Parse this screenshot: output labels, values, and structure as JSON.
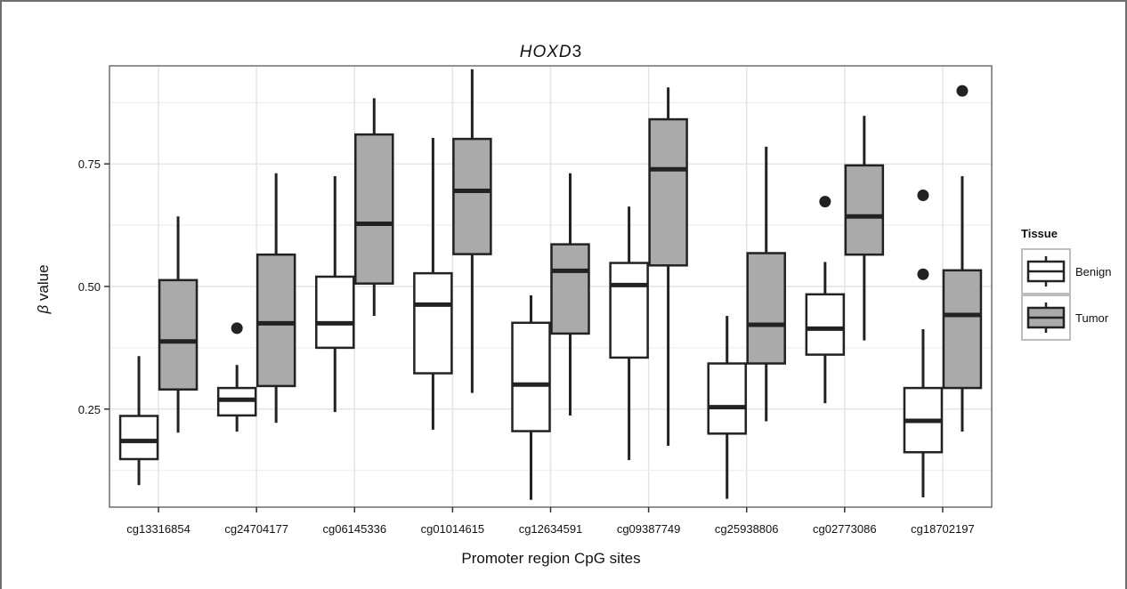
{
  "chart_data": {
    "type": "boxplot",
    "title_prefix": "HOXD",
    "title_suffix": "3",
    "xlabel": "Promoter region CpG sites",
    "ylabel_symbol": "β",
    "ylabel_text": " value",
    "ylim": [
      0.05,
      0.95
    ],
    "yticks": [
      0.25,
      0.5,
      0.75
    ],
    "ytick_labels": [
      "0.25",
      "0.50",
      "0.75"
    ],
    "grid": true,
    "legend": {
      "title": "Tissue",
      "position": "right",
      "entries": [
        {
          "label": "Benign",
          "fill": "#ffffff"
        },
        {
          "label": "Tumor",
          "fill": "#aaaaaa"
        }
      ]
    },
    "colors": {
      "benign": "#ffffff",
      "tumor": "#aaaaaa",
      "panel_border": "#6e6e6e",
      "grid": "#e4e4e4",
      "stroke": "#222222"
    },
    "categories": [
      "cg13316854",
      "cg24704177",
      "cg06145336",
      "cg01014615",
      "cg12634591",
      "cg09387749",
      "cg25938806",
      "cg02773086",
      "cg18702197"
    ],
    "series": [
      {
        "name": "Benign",
        "boxes": [
          {
            "lower": 0.095,
            "q1": 0.148,
            "median": 0.185,
            "q3": 0.236,
            "upper": 0.358,
            "outliers": []
          },
          {
            "lower": 0.204,
            "q1": 0.237,
            "median": 0.269,
            "q3": 0.293,
            "upper": 0.34,
            "outliers": [
              0.415
            ]
          },
          {
            "lower": 0.244,
            "q1": 0.375,
            "median": 0.425,
            "q3": 0.52,
            "upper": 0.725,
            "outliers": []
          },
          {
            "lower": 0.208,
            "q1": 0.323,
            "median": 0.463,
            "q3": 0.527,
            "upper": 0.803,
            "outliers": []
          },
          {
            "lower": 0.065,
            "q1": 0.205,
            "median": 0.3,
            "q3": 0.426,
            "upper": 0.482,
            "outliers": []
          },
          {
            "lower": 0.146,
            "q1": 0.355,
            "median": 0.503,
            "q3": 0.548,
            "upper": 0.663,
            "outliers": []
          },
          {
            "lower": 0.067,
            "q1": 0.2,
            "median": 0.254,
            "q3": 0.343,
            "upper": 0.44,
            "outliers": []
          },
          {
            "lower": 0.262,
            "q1": 0.361,
            "median": 0.414,
            "q3": 0.484,
            "upper": 0.55,
            "outliers": [
              0.673
            ]
          },
          {
            "lower": 0.07,
            "q1": 0.162,
            "median": 0.226,
            "q3": 0.293,
            "upper": 0.413,
            "outliers": [
              0.525,
              0.686
            ]
          }
        ]
      },
      {
        "name": "Tumor",
        "boxes": [
          {
            "lower": 0.202,
            "q1": 0.29,
            "median": 0.388,
            "q3": 0.513,
            "upper": 0.643,
            "outliers": []
          },
          {
            "lower": 0.222,
            "q1": 0.297,
            "median": 0.425,
            "q3": 0.565,
            "upper": 0.731,
            "outliers": []
          },
          {
            "lower": 0.44,
            "q1": 0.506,
            "median": 0.628,
            "q3": 0.81,
            "upper": 0.884,
            "outliers": []
          },
          {
            "lower": 0.283,
            "q1": 0.566,
            "median": 0.695,
            "q3": 0.801,
            "upper": 0.943,
            "outliers": []
          },
          {
            "lower": 0.237,
            "q1": 0.404,
            "median": 0.532,
            "q3": 0.586,
            "upper": 0.731,
            "outliers": []
          },
          {
            "lower": 0.175,
            "q1": 0.543,
            "median": 0.739,
            "q3": 0.841,
            "upper": 0.906,
            "outliers": []
          },
          {
            "lower": 0.225,
            "q1": 0.343,
            "median": 0.422,
            "q3": 0.568,
            "upper": 0.785,
            "outliers": []
          },
          {
            "lower": 0.39,
            "q1": 0.565,
            "median": 0.643,
            "q3": 0.747,
            "upper": 0.848,
            "outliers": []
          },
          {
            "lower": 0.204,
            "q1": 0.293,
            "median": 0.442,
            "q3": 0.533,
            "upper": 0.725,
            "outliers": [
              0.899
            ]
          }
        ]
      }
    ]
  }
}
